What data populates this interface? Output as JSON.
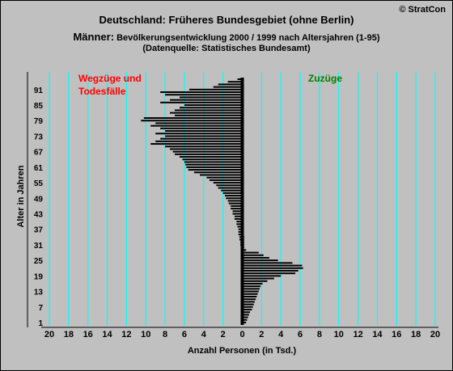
{
  "header": {
    "title": "Deutschland: Früheres Bundesgebiet (ohne Berlin)",
    "subtitle_big": "Männer:",
    "subtitle_small": " Bevölkerungsentwicklung 2000 / 1999  nach Altersjahren (1-95)",
    "source": "(Datenquelle: Statistisches Bundesamt)",
    "copyright": "© StratCon"
  },
  "colors": {
    "background": "#c0c0c0",
    "grid": "#00ffff",
    "bars": "#000000",
    "left_label": "#ff0000",
    "right_label": "#008000"
  },
  "chart_data": {
    "type": "bar",
    "orientation": "horizontal",
    "xlabel": "Anzahl Personen (in Tsd.)",
    "ylabel": "Alter in Jahren",
    "xlim": [
      -20,
      20
    ],
    "ylim": [
      1,
      95
    ],
    "x_ticks": [
      "20",
      "18",
      "16",
      "14",
      "12",
      "10",
      "8",
      "6",
      "4",
      "2",
      "0",
      "2",
      "4",
      "6",
      "8",
      "10",
      "12",
      "14",
      "16",
      "18",
      "20"
    ],
    "y_ticks": [
      "1",
      "7",
      "13",
      "19",
      "25",
      "31",
      "37",
      "43",
      "49",
      "55",
      "61",
      "67",
      "73",
      "79",
      "85",
      "91"
    ],
    "annotations": {
      "left": [
        "Wegzüge und",
        "Todesfälle"
      ],
      "right": "Zuzüge"
    },
    "grid": true,
    "ages": [
      1,
      2,
      3,
      4,
      5,
      6,
      7,
      8,
      9,
      10,
      11,
      12,
      13,
      14,
      15,
      16,
      17,
      18,
      19,
      20,
      21,
      22,
      23,
      24,
      25,
      26,
      27,
      28,
      29,
      30,
      31,
      32,
      33,
      34,
      35,
      36,
      37,
      38,
      39,
      40,
      41,
      42,
      43,
      44,
      45,
      46,
      47,
      48,
      49,
      50,
      51,
      52,
      53,
      54,
      55,
      56,
      57,
      58,
      59,
      60,
      61,
      62,
      63,
      64,
      65,
      66,
      67,
      68,
      69,
      70,
      71,
      72,
      73,
      74,
      75,
      76,
      77,
      78,
      79,
      80,
      81,
      82,
      83,
      84,
      85,
      86,
      87,
      88,
      89,
      90,
      91,
      92,
      93,
      94,
      95
    ],
    "series": [
      {
        "side": "left",
        "values": [
          0,
          0,
          0,
          0,
          0,
          0,
          0,
          0,
          0,
          0,
          0,
          0,
          0,
          0,
          0,
          0,
          0,
          0,
          0,
          0,
          0,
          0,
          0,
          0,
          0,
          0,
          0,
          0,
          0,
          0.1,
          0.2,
          0.2,
          0.3,
          0.3,
          0.4,
          0.4,
          0.4,
          0.5,
          0.6,
          0.6,
          0.8,
          0.8,
          1.0,
          1.0,
          1.2,
          1.2,
          1.4,
          1.5,
          1.7,
          1.8,
          2.0,
          2.2,
          2.5,
          2.7,
          3.0,
          3.4,
          3.7,
          4.4,
          5.0,
          5.6,
          5.8,
          5.9,
          6.0,
          6.2,
          6.5,
          7.0,
          7.2,
          7.5,
          8.0,
          9.5,
          9.0,
          8.5,
          8.0,
          9.0,
          8.0,
          8.5,
          9.5,
          9.0,
          10.5,
          10.2,
          7.0,
          7.5,
          7.0,
          6.5,
          6.0,
          8.5,
          7.5,
          6.5,
          8.0,
          8.5,
          5.5,
          3.0,
          2.5,
          1.5,
          0.5
        ]
      },
      {
        "side": "right",
        "values": [
          0.4,
          0.5,
          0.6,
          0.7,
          0.8,
          1.0,
          1.1,
          1.2,
          1.3,
          1.4,
          1.5,
          1.6,
          1.7,
          1.8,
          1.9,
          2.1,
          2.6,
          3.3,
          4.0,
          5.5,
          5.8,
          6.3,
          6.2,
          5.2,
          3.7,
          2.8,
          2.2,
          1.7,
          0.4,
          0.2,
          0.2,
          0.2,
          0.2,
          0.2,
          0.1,
          0.1,
          0.1,
          0.1,
          0.1,
          0.1,
          0.1,
          0,
          0,
          0,
          0,
          0,
          0,
          0,
          0,
          0,
          0,
          0,
          0,
          0,
          0,
          0,
          0,
          0,
          0,
          0,
          0,
          0,
          0,
          0,
          0,
          0,
          0,
          0,
          0,
          0,
          0,
          0,
          0,
          0,
          0,
          0,
          0,
          0,
          0,
          0,
          0,
          0,
          0,
          0,
          0,
          0,
          0,
          0,
          0,
          0,
          0,
          0,
          0,
          0,
          0
        ]
      }
    ]
  }
}
